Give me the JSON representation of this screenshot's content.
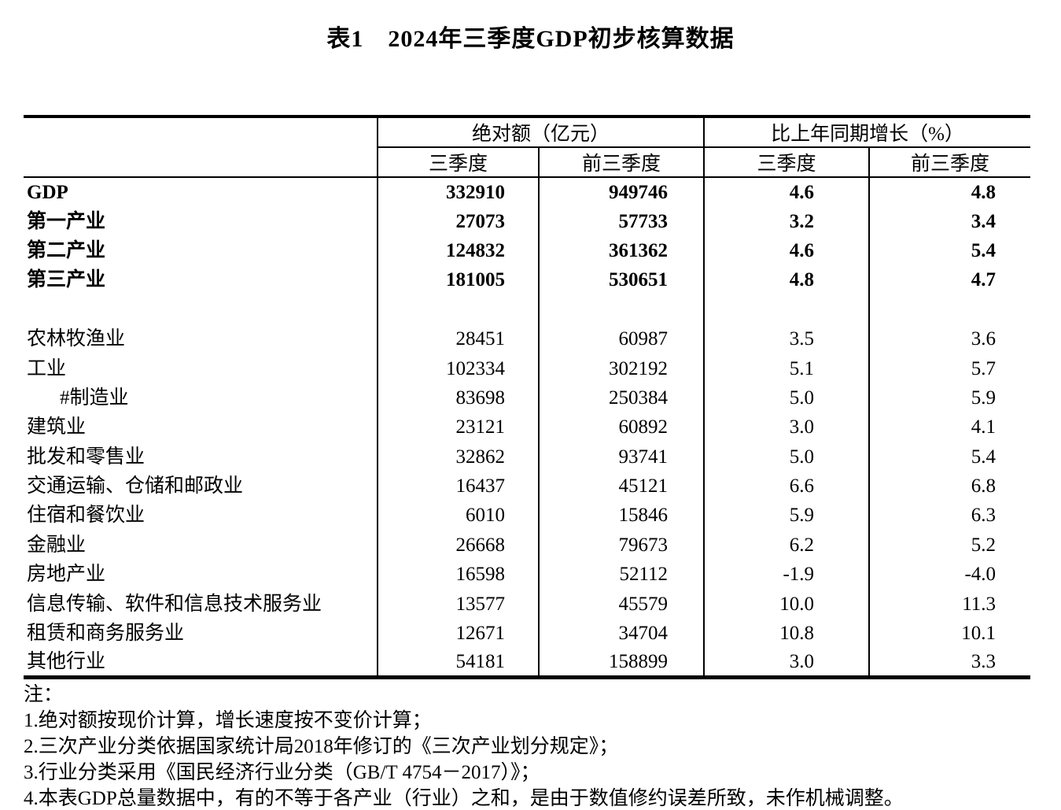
{
  "title": "表1　2024年三季度GDP初步核算数据",
  "table": {
    "group_headers": [
      "绝对额（亿元）",
      "比上年同期增长（%）"
    ],
    "sub_headers": [
      "三季度",
      "前三季度",
      "三季度",
      "前三季度"
    ],
    "rows": [
      {
        "label": "GDP",
        "bold": true,
        "blank": false,
        "indent": false,
        "values": [
          "332910",
          "949746",
          "4.6",
          "4.8"
        ]
      },
      {
        "label": "第一产业",
        "bold": true,
        "blank": false,
        "indent": false,
        "values": [
          "27073",
          "57733",
          "3.2",
          "3.4"
        ]
      },
      {
        "label": "第二产业",
        "bold": true,
        "blank": false,
        "indent": false,
        "values": [
          "124832",
          "361362",
          "4.6",
          "5.4"
        ]
      },
      {
        "label": "第三产业",
        "bold": true,
        "blank": false,
        "indent": false,
        "values": [
          "181005",
          "530651",
          "4.8",
          "4.7"
        ]
      },
      {
        "label": "",
        "bold": false,
        "blank": true,
        "indent": false,
        "values": [
          "",
          "",
          "",
          ""
        ]
      },
      {
        "label": "农林牧渔业",
        "bold": false,
        "blank": false,
        "indent": false,
        "values": [
          "28451",
          "60987",
          "3.5",
          "3.6"
        ]
      },
      {
        "label": "工业",
        "bold": false,
        "blank": false,
        "indent": false,
        "values": [
          "102334",
          "302192",
          "5.1",
          "5.7"
        ]
      },
      {
        "label": "#制造业",
        "bold": false,
        "blank": false,
        "indent": true,
        "values": [
          "83698",
          "250384",
          "5.0",
          "5.9"
        ]
      },
      {
        "label": "建筑业",
        "bold": false,
        "blank": false,
        "indent": false,
        "values": [
          "23121",
          "60892",
          "3.0",
          "4.1"
        ]
      },
      {
        "label": "批发和零售业",
        "bold": false,
        "blank": false,
        "indent": false,
        "values": [
          "32862",
          "93741",
          "5.0",
          "5.4"
        ]
      },
      {
        "label": "交通运输、仓储和邮政业",
        "bold": false,
        "blank": false,
        "indent": false,
        "values": [
          "16437",
          "45121",
          "6.6",
          "6.8"
        ]
      },
      {
        "label": "住宿和餐饮业",
        "bold": false,
        "blank": false,
        "indent": false,
        "values": [
          "6010",
          "15846",
          "5.9",
          "6.3"
        ]
      },
      {
        "label": "金融业",
        "bold": false,
        "blank": false,
        "indent": false,
        "values": [
          "26668",
          "79673",
          "6.2",
          "5.2"
        ]
      },
      {
        "label": "房地产业",
        "bold": false,
        "blank": false,
        "indent": false,
        "values": [
          "16598",
          "52112",
          "-1.9",
          "-4.0"
        ]
      },
      {
        "label": "信息传输、软件和信息技术服务业",
        "bold": false,
        "blank": false,
        "indent": false,
        "values": [
          "13577",
          "45579",
          "10.0",
          "11.3"
        ]
      },
      {
        "label": "租赁和商务服务业",
        "bold": false,
        "blank": false,
        "indent": false,
        "values": [
          "12671",
          "34704",
          "10.8",
          "10.1"
        ]
      },
      {
        "label": "其他行业",
        "bold": false,
        "blank": false,
        "indent": false,
        "values": [
          "54181",
          "158899",
          "3.0",
          "3.3"
        ]
      }
    ]
  },
  "notes": {
    "lines": [
      "注：",
      "1.绝对额按现价计算，增长速度按不变价计算；",
      "2.三次产业分类依据国家统计局2018年修订的《三次产业划分规定》；",
      "3.行业分类采用《国民经济行业分类（GB/T 4754－2017）》；",
      "4.本表GDP总量数据中，有的不等于各产业（行业）之和，是由于数值修约误差所致，未作机械调整。"
    ]
  }
}
